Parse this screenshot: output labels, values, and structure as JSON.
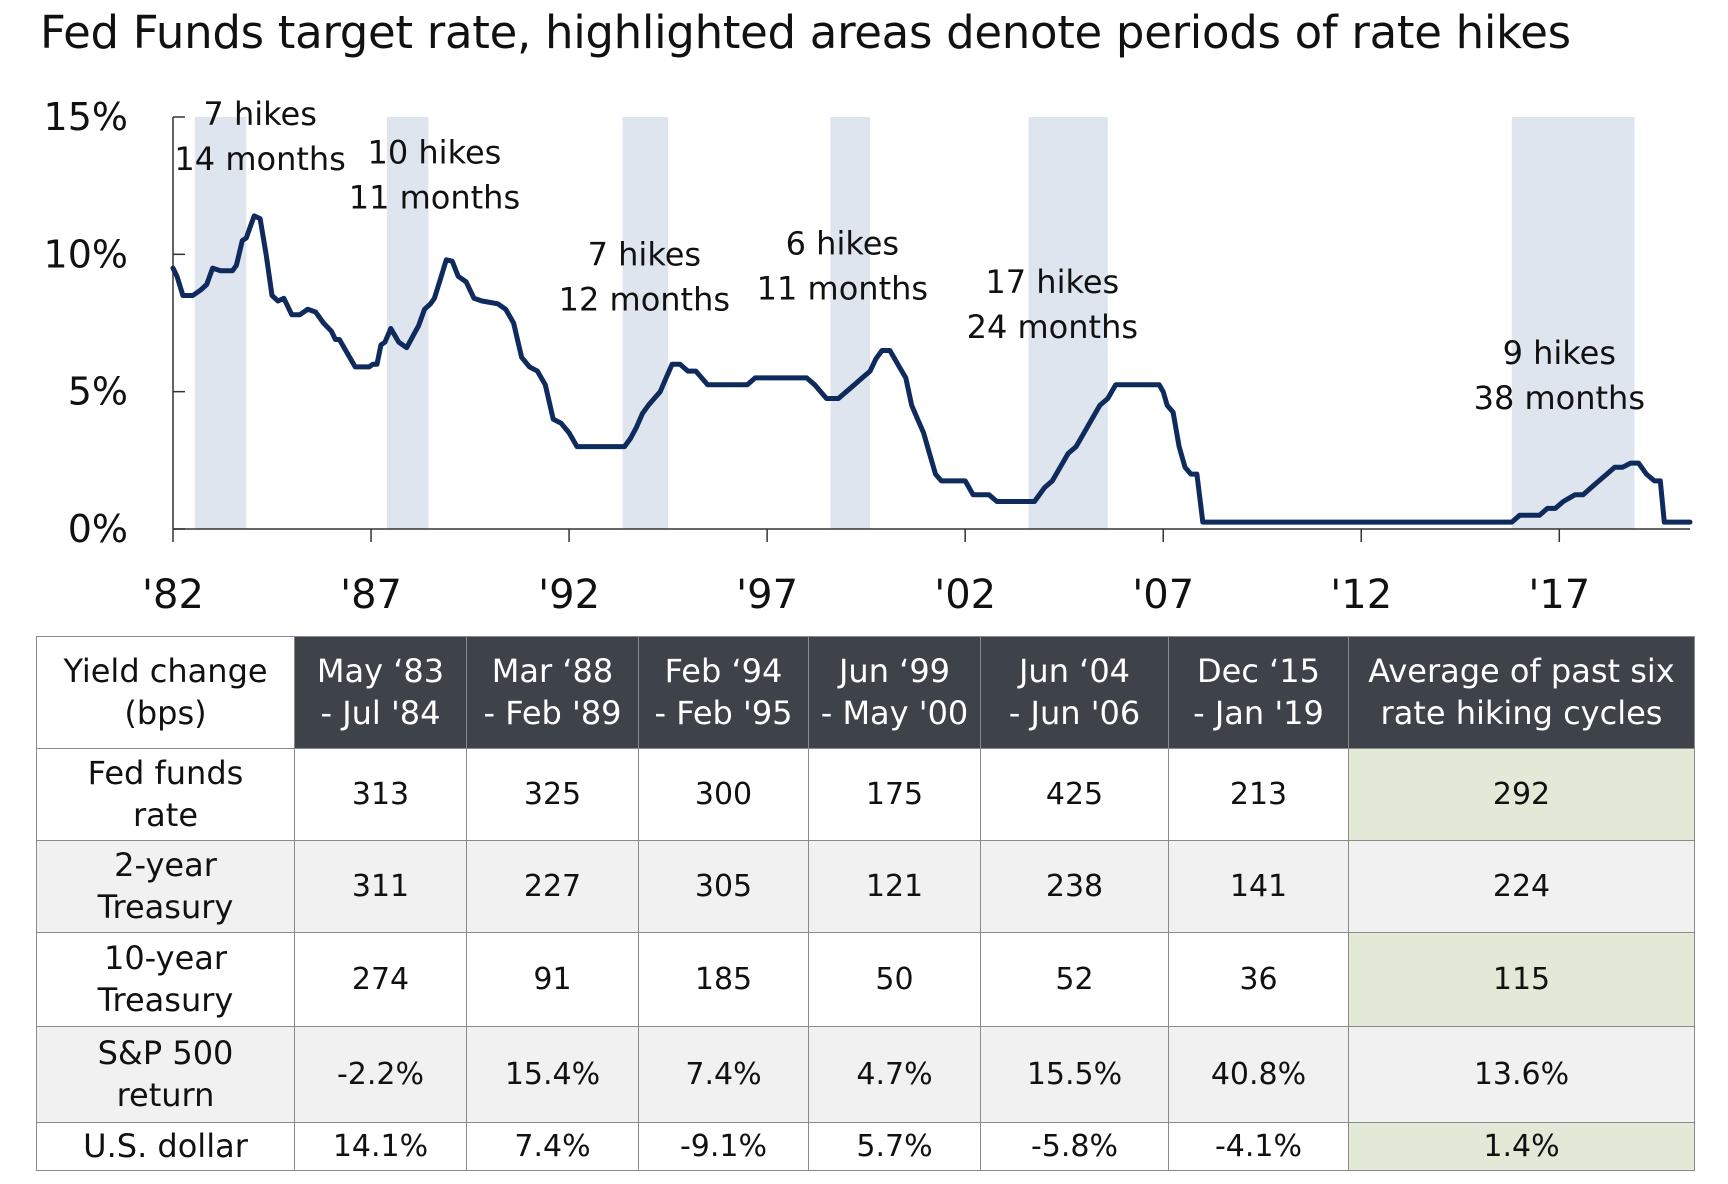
{
  "title": "Fed Funds target rate, highlighted areas denote periods of rate hikes",
  "colors": {
    "line": "#0f2a5c",
    "shade": "#dfe5ee",
    "header_bg": "#3e4349",
    "avg_bg": "#e2e9d7",
    "alt_row_bg": "#f1f1f1"
  },
  "chart_data": {
    "type": "line",
    "title": "Fed Funds target rate, highlighted areas denote periods of rate hikes",
    "xlim": [
      1982.0,
      2020.3
    ],
    "ylim": [
      0,
      15
    ],
    "yticks": [
      {
        "value": 0,
        "label": "0%"
      },
      {
        "value": 5,
        "label": "5%"
      },
      {
        "value": 10,
        "label": "10%"
      },
      {
        "value": 15,
        "label": "15%"
      }
    ],
    "xticks": [
      {
        "value": 1982,
        "label": "'82"
      },
      {
        "value": 1987,
        "label": "'87"
      },
      {
        "value": 1992,
        "label": "'92"
      },
      {
        "value": 1997,
        "label": "'97"
      },
      {
        "value": 2002,
        "label": "'02"
      },
      {
        "value": 2007,
        "label": "'07"
      },
      {
        "value": 2012,
        "label": "'12"
      },
      {
        "value": 2017,
        "label": "'17"
      }
    ],
    "grid": false,
    "legend": "none",
    "hike_periods": [
      {
        "start": 1982.55,
        "end": 1983.85,
        "line1": "7 hikes",
        "line2": "14 months",
        "label_x": 1984.2,
        "label_y": 14.7
      },
      {
        "start": 1987.4,
        "end": 1988.45,
        "line1": "10 hikes",
        "line2": "11 months",
        "label_x": 1988.6,
        "label_y": 13.3
      },
      {
        "start": 1993.35,
        "end": 1994.5,
        "line1": "7 hikes",
        "line2": "12 months",
        "label_x": 1993.9,
        "label_y": 9.6
      },
      {
        "start": 1998.6,
        "end": 1999.6,
        "line1": "6 hikes",
        "line2": "11 months",
        "label_x": 1998.9,
        "label_y": 10.0
      },
      {
        "start": 2003.6,
        "end": 2005.6,
        "line1": "17 hikes",
        "line2": "24 months",
        "label_x": 2004.2,
        "label_y": 8.6
      },
      {
        "start": 2015.8,
        "end": 2018.9,
        "line1": "9 hikes",
        "line2": "38 months",
        "label_x": 2017.0,
        "label_y": 6.0
      }
    ],
    "series": [
      {
        "x": [
          1982.0,
          1982.1,
          1982.25,
          1982.5,
          1982.7,
          1982.85,
          1983.0,
          1983.2,
          1983.35,
          1983.5,
          1983.6,
          1983.75,
          1983.85,
          1983.95,
          1984.05,
          1984.2,
          1984.35,
          1984.5,
          1984.65,
          1984.8,
          1985.0,
          1985.2,
          1985.4,
          1985.6,
          1985.8,
          1986.0,
          1986.1,
          1986.2,
          1986.4,
          1986.6,
          1986.8,
          1986.95,
          1987.05,
          1987.15,
          1987.25,
          1987.35,
          1987.5,
          1987.7,
          1987.9,
          1988.05,
          1988.2,
          1988.35,
          1988.5,
          1988.6,
          1988.75,
          1988.9,
          1989.05,
          1989.2,
          1989.4,
          1989.6,
          1989.8,
          1990.0,
          1990.2,
          1990.4,
          1990.6,
          1990.8,
          1991.0,
          1991.2,
          1991.4,
          1991.6,
          1991.8,
          1992.0,
          1992.2,
          1992.5,
          1993.0,
          1993.4,
          1993.55,
          1993.7,
          1993.85,
          1994.0,
          1994.15,
          1994.3,
          1994.45,
          1994.6,
          1994.8,
          1995.0,
          1995.2,
          1995.5,
          1996.0,
          1996.5,
          1996.7,
          1997.0,
          1997.5,
          1998.0,
          1998.2,
          1998.5,
          1998.8,
          1999.0,
          1999.2,
          1999.4,
          1999.6,
          1999.75,
          1999.9,
          2000.0,
          2000.1,
          2000.3,
          2000.5,
          2000.65,
          2000.8,
          2000.95,
          2001.1,
          2001.25,
          2001.4,
          2001.6,
          2001.8,
          2002.0,
          2002.2,
          2002.4,
          2002.6,
          2002.8,
          2003.0,
          2003.2,
          2003.5,
          2003.75,
          2004.0,
          2004.2,
          2004.4,
          2004.6,
          2004.8,
          2005.0,
          2005.2,
          2005.4,
          2005.6,
          2005.8,
          2006.0,
          2006.5,
          2006.9,
          2007.0,
          2007.1,
          2007.25,
          2007.4,
          2007.55,
          2007.7,
          2007.85,
          2008.0,
          2008.3,
          2015.8,
          2016.0,
          2016.5,
          2016.7,
          2016.9,
          2017.1,
          2017.4,
          2017.6,
          2017.8,
          2018.0,
          2018.2,
          2018.4,
          2018.6,
          2018.8,
          2019.0,
          2019.2,
          2019.4,
          2019.55,
          2019.65,
          2019.8,
          2020.3
        ],
        "y": [
          9.5,
          9.2,
          8.5,
          8.5,
          8.7,
          8.9,
          9.5,
          9.4,
          9.4,
          9.4,
          9.6,
          10.5,
          10.6,
          11.0,
          11.4,
          11.3,
          10.0,
          8.5,
          8.3,
          8.4,
          7.8,
          7.8,
          8.0,
          7.9,
          7.5,
          7.2,
          6.9,
          6.9,
          6.4,
          5.9,
          5.9,
          5.9,
          6.0,
          6.0,
          6.7,
          6.8,
          7.3,
          6.8,
          6.6,
          7.0,
          7.4,
          8.0,
          8.2,
          8.4,
          9.1,
          9.8,
          9.75,
          9.2,
          9.0,
          8.4,
          8.3,
          8.25,
          8.2,
          8.0,
          7.5,
          6.25,
          5.9,
          5.75,
          5.25,
          4.0,
          3.85,
          3.5,
          3.0,
          3.0,
          3.0,
          3.0,
          3.3,
          3.7,
          4.2,
          4.5,
          4.75,
          5.0,
          5.5,
          6.0,
          6.0,
          5.75,
          5.75,
          5.25,
          5.25,
          5.25,
          5.5,
          5.5,
          5.5,
          5.5,
          5.25,
          4.75,
          4.75,
          5.0,
          5.25,
          5.5,
          5.75,
          6.2,
          6.5,
          6.5,
          6.5,
          6.0,
          5.5,
          4.5,
          4.0,
          3.5,
          2.75,
          2.0,
          1.75,
          1.75,
          1.75,
          1.75,
          1.25,
          1.25,
          1.25,
          1.0,
          1.0,
          1.0,
          1.0,
          1.0,
          1.5,
          1.75,
          2.25,
          2.75,
          3.0,
          3.5,
          4.0,
          4.5,
          4.75,
          5.25,
          5.25,
          5.25,
          5.25,
          5.0,
          4.5,
          4.25,
          3.0,
          2.25,
          2.0,
          2.0,
          0.25,
          0.25,
          0.25,
          0.5,
          0.5,
          0.75,
          0.75,
          1.0,
          1.25,
          1.25,
          1.5,
          1.75,
          2.0,
          2.25,
          2.25,
          2.4,
          2.4,
          2.0,
          1.75,
          1.75,
          0.25,
          0.25,
          0.25
        ]
      }
    ]
  },
  "table": {
    "corner": "Yield change\n(bps)",
    "columns": [
      "May ‘83\n- Jul '84",
      "Mar ‘88\n- Feb '89",
      "Feb ‘94\n- Feb '95",
      "Jun ‘99\n- May '00",
      "Jun ‘04\n- Jun '06",
      "Dec ‘15\n- Jan '19",
      "Average of past six\nrate hiking cycles"
    ],
    "rows": [
      {
        "label": "Fed funds\nrate",
        "values": [
          "313",
          "325",
          "300",
          "175",
          "425",
          "213",
          "292"
        ]
      },
      {
        "label": "2-year\nTreasury",
        "values": [
          "311",
          "227",
          "305",
          "121",
          "238",
          "141",
          "224"
        ]
      },
      {
        "label": "10-year\nTreasury",
        "values": [
          "274",
          "91",
          "185",
          "50",
          "52",
          "36",
          "115"
        ]
      },
      {
        "label": "S&P 500\nreturn",
        "values": [
          "-2.2%",
          "15.4%",
          "7.4%",
          "4.7%",
          "15.5%",
          "40.8%",
          "13.6%"
        ]
      },
      {
        "label": "U.S. dollar",
        "values": [
          "14.1%",
          "7.4%",
          "-9.1%",
          "5.7%",
          "-5.8%",
          "-4.1%",
          "1.4%"
        ]
      }
    ]
  }
}
